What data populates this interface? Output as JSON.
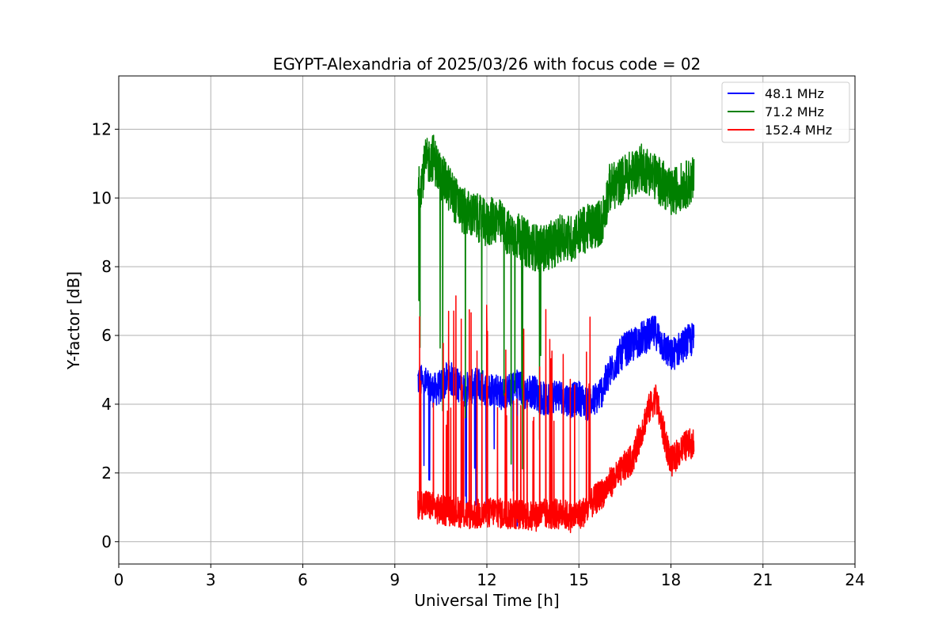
{
  "chart_data": {
    "type": "line",
    "title": "EGYPT-Alexandria of 2025/03/26 with focus code = 02",
    "xlabel": "Universal Time [h]",
    "ylabel": "Y-factor [dB]",
    "xlim": [
      0,
      24
    ],
    "ylim": [
      -0.65,
      13.55
    ],
    "xticks": [
      0,
      3,
      6,
      9,
      12,
      15,
      18,
      21,
      24
    ],
    "xtick_labels": [
      "0",
      "3",
      "6",
      "9",
      "12",
      "15",
      "18",
      "21",
      "24"
    ],
    "yticks": [
      0,
      2,
      4,
      6,
      8,
      10,
      12
    ],
    "ytick_labels": [
      "0",
      "2",
      "4",
      "6",
      "8",
      "10",
      "12"
    ],
    "grid": true,
    "legend_position": "top-right",
    "series": [
      {
        "name": "  48.1 MHz",
        "color": "#0000ff",
        "x": [
          9.75,
          10.0,
          10.25,
          10.5,
          10.75,
          11.0,
          11.25,
          11.5,
          11.75,
          12.0,
          12.25,
          12.5,
          12.75,
          13.0,
          13.25,
          13.5,
          13.75,
          14.0,
          14.25,
          14.5,
          14.75,
          15.0,
          15.25,
          15.5,
          15.75,
          16.0,
          16.25,
          16.5,
          16.75,
          17.0,
          17.25,
          17.5,
          17.75,
          18.0,
          18.25,
          18.5,
          18.75
        ],
        "y": [
          4.7,
          4.6,
          4.4,
          4.5,
          4.8,
          4.6,
          4.4,
          4.5,
          4.6,
          4.4,
          4.5,
          4.3,
          4.4,
          4.6,
          4.3,
          4.4,
          4.2,
          4.1,
          4.3,
          4.2,
          4.1,
          4.2,
          4.0,
          4.1,
          4.4,
          4.9,
          5.3,
          5.6,
          5.7,
          5.9,
          6.0,
          6.1,
          5.7,
          5.4,
          5.6,
          5.8,
          5.9
        ],
        "noise": 0.5
      },
      {
        "name": "  71.2 MHz",
        "color": "#008000",
        "x": [
          9.75,
          10.0,
          10.25,
          10.5,
          10.75,
          11.0,
          11.25,
          11.5,
          11.75,
          12.0,
          12.25,
          12.5,
          12.75,
          13.0,
          13.25,
          13.5,
          13.75,
          14.0,
          14.25,
          14.5,
          14.75,
          15.0,
          15.25,
          15.5,
          15.75,
          16.0,
          16.25,
          16.5,
          16.75,
          17.0,
          17.25,
          17.5,
          17.75,
          18.0,
          18.25,
          18.5,
          18.75
        ],
        "y": [
          10.1,
          11.0,
          11.2,
          10.6,
          10.3,
          9.9,
          9.6,
          9.5,
          9.4,
          9.2,
          9.4,
          9.2,
          8.9,
          8.9,
          8.7,
          8.6,
          8.5,
          8.6,
          8.7,
          8.9,
          8.8,
          9.0,
          9.1,
          9.2,
          9.3,
          10.3,
          10.4,
          10.6,
          10.7,
          10.9,
          10.8,
          10.6,
          10.4,
          10.1,
          10.3,
          10.4,
          10.5
        ],
        "noise": 0.7
      },
      {
        "name": " 152.4 MHz",
        "color": "#ff0000",
        "x": [
          9.75,
          10.0,
          10.25,
          10.5,
          10.75,
          11.0,
          11.25,
          11.5,
          11.75,
          12.0,
          12.25,
          12.5,
          12.75,
          13.0,
          13.25,
          13.5,
          13.75,
          14.0,
          14.25,
          14.5,
          14.75,
          15.0,
          15.25,
          15.5,
          15.75,
          16.0,
          16.25,
          16.5,
          16.75,
          17.0,
          17.25,
          17.5,
          17.75,
          18.0,
          18.25,
          18.5,
          18.75
        ],
        "y": [
          1.1,
          1.1,
          1.0,
          0.9,
          0.9,
          0.9,
          0.8,
          0.8,
          0.8,
          0.8,
          0.9,
          0.8,
          0.8,
          0.8,
          0.8,
          0.7,
          0.8,
          0.8,
          0.8,
          0.8,
          0.7,
          0.8,
          0.9,
          1.2,
          1.4,
          1.7,
          1.9,
          2.2,
          2.4,
          3.1,
          3.8,
          4.2,
          3.2,
          2.3,
          2.6,
          2.8,
          2.9
        ],
        "noise": 0.45
      }
    ]
  }
}
